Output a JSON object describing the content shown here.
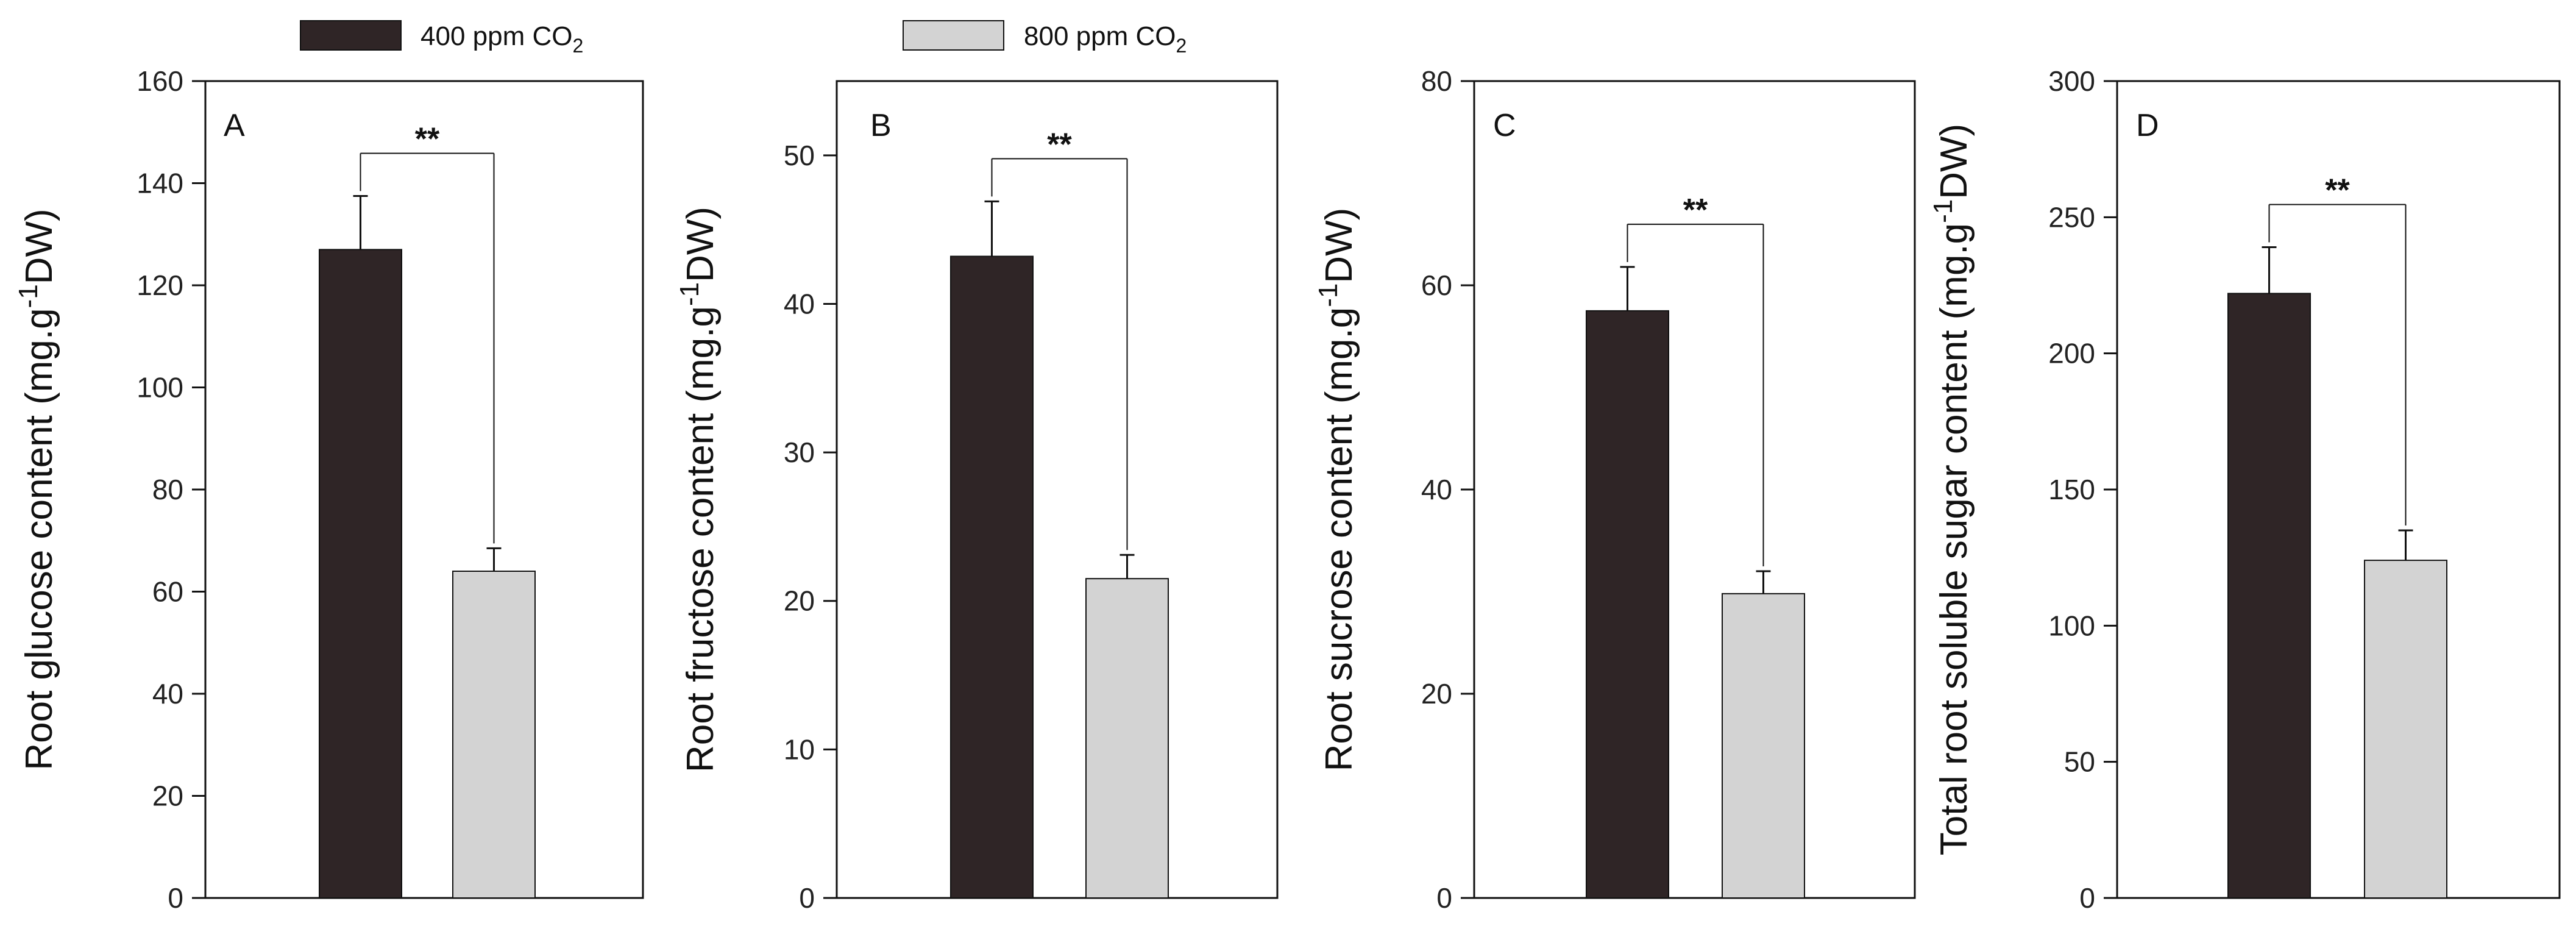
{
  "legend": [
    {
      "label": "400 ppm CO",
      "subscript": "2",
      "color": "#2f2526"
    },
    {
      "label": "800 ppm CO",
      "subscript": "2",
      "color": "#d3d3d3"
    }
  ],
  "chart_data": [
    {
      "type": "bar",
      "panel": "A",
      "categories": [
        "400 ppm CO2",
        "800 ppm CO2"
      ],
      "values": [
        127,
        64
      ],
      "errors": [
        10.5,
        4.5
      ],
      "ylabel": "Root glucose content (mg.g-1DW)",
      "ylabel_parts": {
        "pre": "Root glucose content (mg.g",
        "sup": "-1",
        "post": "DW)"
      },
      "ylim": [
        0,
        160
      ],
      "yticks": [
        0,
        20,
        40,
        60,
        80,
        100,
        120,
        140,
        160
      ],
      "significance": "**"
    },
    {
      "type": "bar",
      "panel": "B",
      "categories": [
        "400 ppm CO2",
        "800 ppm CO2"
      ],
      "values": [
        43.2,
        21.5
      ],
      "errors": [
        3.7,
        1.6
      ],
      "ylabel": "Root fructose content (mg.g-1DW)",
      "ylabel_parts": {
        "pre": "Root fructose content (mg.g",
        "sup": "-1",
        "post": "DW)"
      },
      "ylim": [
        0,
        55
      ],
      "yticks": [
        0,
        10,
        20,
        30,
        40,
        50
      ],
      "significance": "**"
    },
    {
      "type": "bar",
      "panel": "C",
      "categories": [
        "400 ppm CO2",
        "800 ppm CO2"
      ],
      "values": [
        57.5,
        29.8
      ],
      "errors": [
        4.3,
        2.2
      ],
      "ylabel": "Root sucrose content (mg.g-1DW)",
      "ylabel_parts": {
        "pre": "Root sucrose content (mg.g",
        "sup": "-1",
        "post": "DW)"
      },
      "ylim": [
        0,
        80
      ],
      "yticks": [
        0,
        20,
        40,
        60,
        80
      ],
      "significance": "**"
    },
    {
      "type": "bar",
      "panel": "D",
      "categories": [
        "400 ppm CO2",
        "800 ppm CO2"
      ],
      "values": [
        222,
        124
      ],
      "errors": [
        17,
        11
      ],
      "ylabel": "Total root soluble sugar content (mg.g-1DW)",
      "ylabel_parts": {
        "pre": "Total root soluble sugar content (mg.g",
        "sup": "-1",
        "post": "DW)"
      },
      "ylim": [
        0,
        300
      ],
      "yticks": [
        0,
        50,
        100,
        150,
        200,
        250,
        300
      ],
      "significance": "**"
    }
  ]
}
